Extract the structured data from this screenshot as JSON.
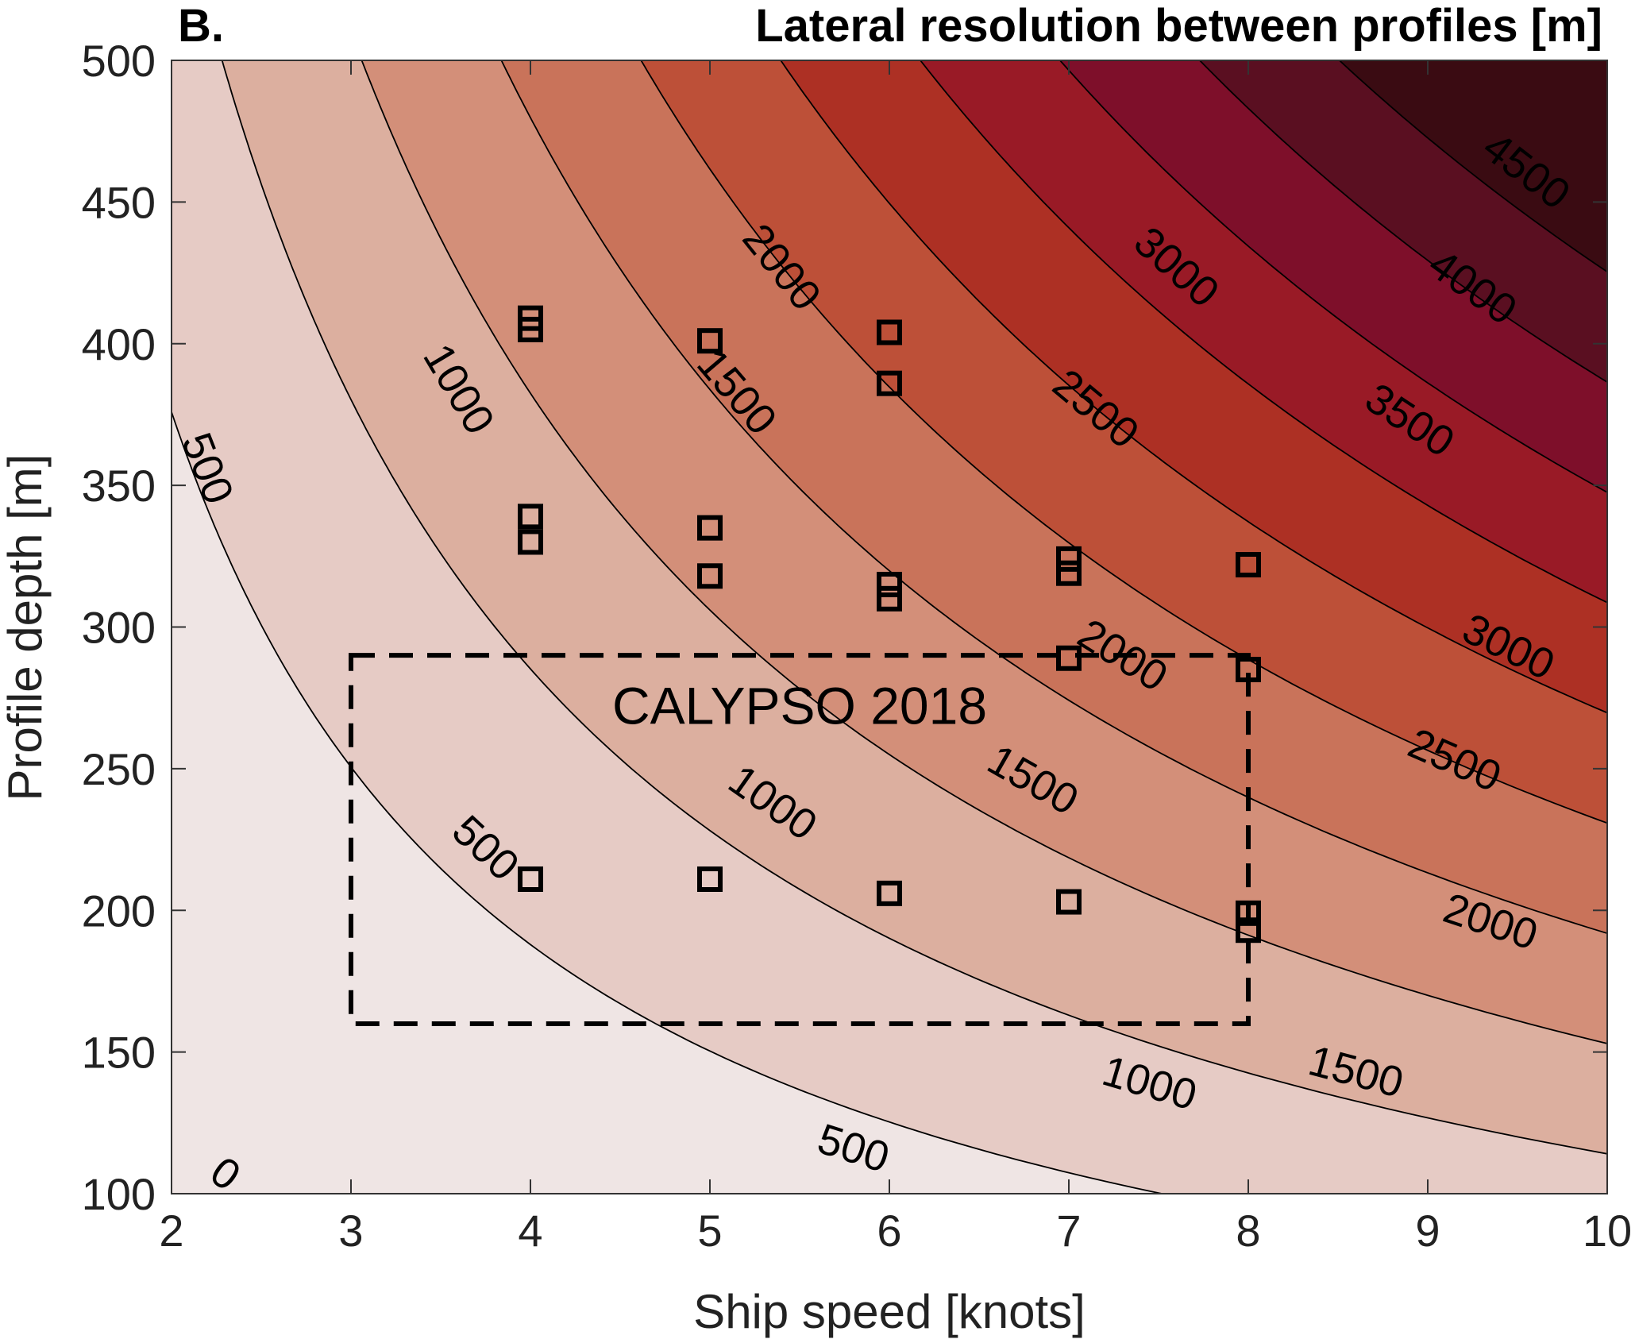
{
  "chart_data": {
    "type": "contour",
    "panel_label": "B.",
    "title": "Lateral resolution between profiles [m]",
    "xlabel": "Ship speed [knots]",
    "ylabel": "Profile depth [m]",
    "xlim": [
      2,
      10
    ],
    "ylim": [
      100,
      500
    ],
    "x_ticks": [
      "2",
      "3",
      "4",
      "5",
      "6",
      "7",
      "8",
      "9",
      "10"
    ],
    "y_ticks": [
      "100",
      "150",
      "200",
      "250",
      "300",
      "350",
      "400",
      "450",
      "500"
    ],
    "contour_levels": [
      0,
      500,
      1000,
      1500,
      2000,
      2500,
      3000,
      3500,
      4000,
      4500
    ],
    "fill_colors": [
      "#efe5e4",
      "#e6cbc5",
      "#dcaf9f",
      "#d38f79",
      "#c9735a",
      "#bd5038",
      "#ad3024",
      "#991a26",
      "#7e0f2a",
      "#5a0f21",
      "#3a0b12"
    ],
    "contour_labels": [
      {
        "text": "0",
        "x": 2.3,
        "y": 107
      },
      {
        "text": "500",
        "x": 2.2,
        "y": 356
      },
      {
        "text": "500",
        "x": 3.75,
        "y": 222
      },
      {
        "text": "500",
        "x": 5.8,
        "y": 116
      },
      {
        "text": "1000",
        "x": 3.6,
        "y": 384
      },
      {
        "text": "1000",
        "x": 5.35,
        "y": 238
      },
      {
        "text": "1000",
        "x": 7.45,
        "y": 139
      },
      {
        "text": "1500",
        "x": 5.15,
        "y": 383
      },
      {
        "text": "1500",
        "x": 6.8,
        "y": 246
      },
      {
        "text": "1500",
        "x": 8.6,
        "y": 143
      },
      {
        "text": "2000",
        "x": 5.4,
        "y": 427
      },
      {
        "text": "2000",
        "x": 7.3,
        "y": 290
      },
      {
        "text": "2000",
        "x": 9.35,
        "y": 196
      },
      {
        "text": "2500",
        "x": 7.15,
        "y": 377
      },
      {
        "text": "2500",
        "x": 9.15,
        "y": 253
      },
      {
        "text": "3000",
        "x": 7.6,
        "y": 427
      },
      {
        "text": "3000",
        "x": 9.45,
        "y": 293
      },
      {
        "text": "3500",
        "x": 8.9,
        "y": 373
      },
      {
        "text": "4000",
        "x": 9.25,
        "y": 420
      },
      {
        "text": "4500",
        "x": 9.55,
        "y": 461
      }
    ],
    "series": [
      {
        "marker": "square",
        "points": [
          {
            "x": 4,
            "y": 409
          },
          {
            "x": 4,
            "y": 405
          },
          {
            "x": 4,
            "y": 339
          },
          {
            "x": 4,
            "y": 330
          },
          {
            "x": 4,
            "y": 211
          },
          {
            "x": 5,
            "y": 401
          },
          {
            "x": 5,
            "y": 335
          },
          {
            "x": 5,
            "y": 318
          },
          {
            "x": 5,
            "y": 211
          },
          {
            "x": 6,
            "y": 404
          },
          {
            "x": 6,
            "y": 386
          },
          {
            "x": 6,
            "y": 315
          },
          {
            "x": 6,
            "y": 310
          },
          {
            "x": 6,
            "y": 206
          },
          {
            "x": 7,
            "y": 324
          },
          {
            "x": 7,
            "y": 319
          },
          {
            "x": 7,
            "y": 289
          },
          {
            "x": 7,
            "y": 203
          },
          {
            "x": 8,
            "y": 322
          },
          {
            "x": 8,
            "y": 285
          },
          {
            "x": 8,
            "y": 199
          },
          {
            "x": 8,
            "y": 193
          }
        ]
      }
    ],
    "annotation": {
      "text": "CALYPSO 2018",
      "text_x": 5.5,
      "text_y": 272,
      "box": {
        "x0": 3,
        "x1": 8,
        "y0": 160,
        "y1": 290
      }
    }
  }
}
